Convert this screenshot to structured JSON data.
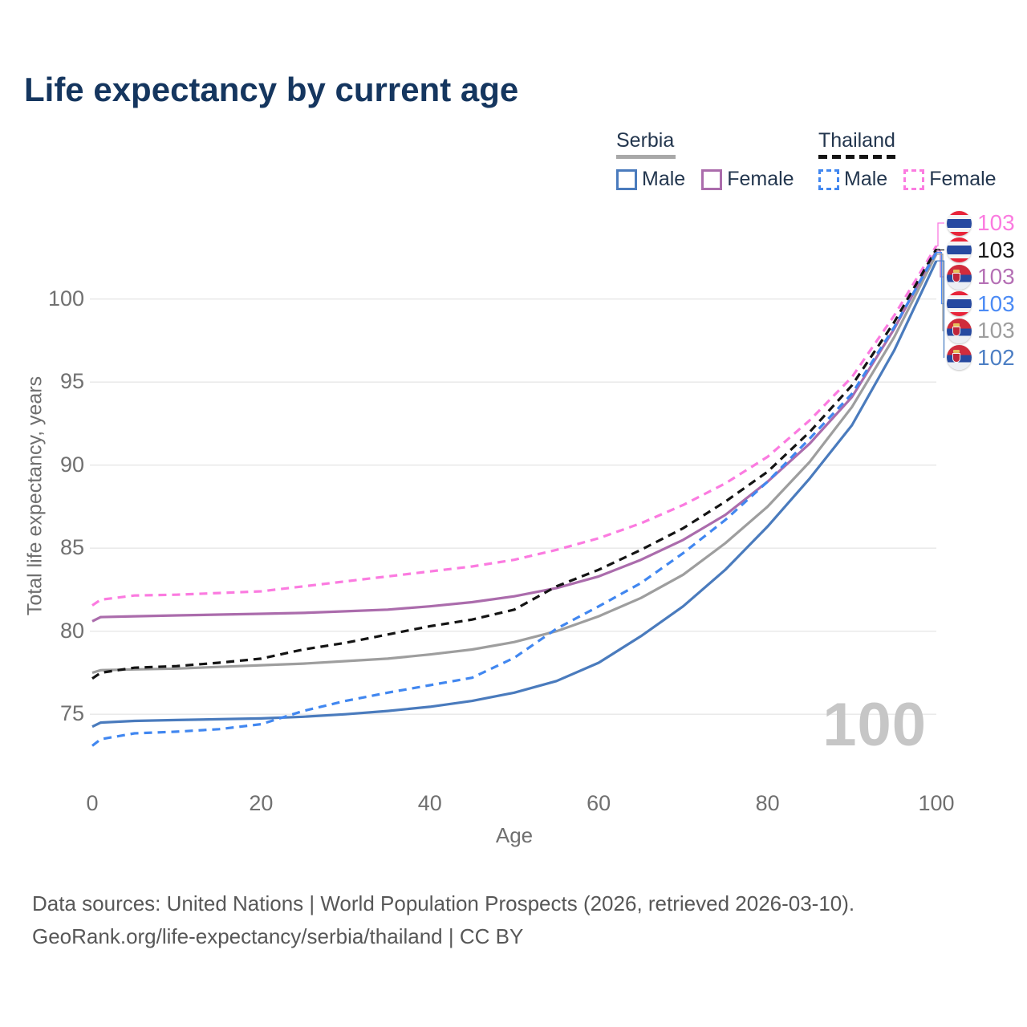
{
  "title": "Life expectancy by current age",
  "legend": {
    "groups": [
      {
        "label": "Serbia",
        "line_style": "solid",
        "line_color": "#a8a8a8",
        "items": [
          {
            "label": "Male",
            "color": "#4a7bbd",
            "dashed": false
          },
          {
            "label": "Female",
            "color": "#ab6cac",
            "dashed": false
          }
        ]
      },
      {
        "label": "Thailand",
        "line_style": "dashed",
        "line_color": "#141414",
        "items": [
          {
            "label": "Male",
            "color": "#4187f0",
            "dashed": true
          },
          {
            "label": "Female",
            "color": "#fb7be0",
            "dashed": true
          }
        ]
      }
    ]
  },
  "chart_data": {
    "type": "line",
    "xlabel": "Age",
    "ylabel": "Total life expectancy, years",
    "xticks": [
      0,
      20,
      40,
      60,
      80,
      100
    ],
    "yticks": [
      75,
      80,
      85,
      90,
      95,
      100
    ],
    "xlim": [
      0,
      100
    ],
    "ylim": [
      73,
      103.5
    ],
    "grid": "horizontal",
    "ages": [
      0,
      1,
      5,
      10,
      15,
      20,
      25,
      30,
      35,
      40,
      45,
      50,
      55,
      60,
      65,
      70,
      75,
      80,
      85,
      90,
      95,
      100
    ],
    "series": [
      {
        "name": "Thailand Female",
        "country": "Thailand",
        "sex": "Female",
        "color": "#fb7be0",
        "dashed": true,
        "end_label": "103",
        "values": [
          81.55,
          81.9,
          82.15,
          82.2,
          82.3,
          82.4,
          82.7,
          83.0,
          83.3,
          83.6,
          83.9,
          84.3,
          84.9,
          85.6,
          86.5,
          87.6,
          88.9,
          90.5,
          92.7,
          95.3,
          99.0,
          103.2
        ]
      },
      {
        "name": "Thailand",
        "country": "Thailand",
        "sex": "Total",
        "color": "#141414",
        "dashed": true,
        "end_label": "103",
        "values": [
          77.15,
          77.5,
          77.8,
          77.9,
          78.1,
          78.35,
          78.9,
          79.3,
          79.8,
          80.3,
          80.7,
          81.3,
          82.7,
          83.7,
          84.9,
          86.2,
          87.8,
          89.6,
          92.0,
          94.8,
          98.6,
          103.0
        ]
      },
      {
        "name": "Serbia Female",
        "country": "Serbia",
        "sex": "Female",
        "color": "#ab6cac",
        "dashed": false,
        "end_label": "103",
        "values": [
          80.6,
          80.85,
          80.9,
          80.95,
          81.0,
          81.05,
          81.1,
          81.2,
          81.3,
          81.5,
          81.75,
          82.1,
          82.6,
          83.3,
          84.3,
          85.5,
          87.0,
          89.0,
          91.3,
          94.1,
          98.2,
          102.9
        ]
      },
      {
        "name": "Thailand Male",
        "country": "Thailand",
        "sex": "Male",
        "color": "#4187f0",
        "dashed": true,
        "end_label": "103",
        "values": [
          73.1,
          73.5,
          73.85,
          73.95,
          74.1,
          74.4,
          75.2,
          75.8,
          76.3,
          76.75,
          77.2,
          78.4,
          80.15,
          81.5,
          82.9,
          84.7,
          86.7,
          89.0,
          91.6,
          94.3,
          98.3,
          102.8
        ]
      },
      {
        "name": "Serbia",
        "country": "Serbia",
        "sex": "Total",
        "color": "#9e9e9e",
        "dashed": false,
        "end_label": "103",
        "values": [
          77.5,
          77.65,
          77.7,
          77.75,
          77.85,
          77.95,
          78.05,
          78.2,
          78.35,
          78.6,
          78.9,
          79.35,
          80.0,
          80.9,
          82.0,
          83.4,
          85.3,
          87.5,
          90.2,
          93.5,
          97.7,
          102.7
        ]
      },
      {
        "name": "Serbia Male",
        "country": "Serbia",
        "sex": "Male",
        "color": "#4a7bbd",
        "dashed": false,
        "end_label": "102",
        "values": [
          74.25,
          74.5,
          74.6,
          74.65,
          74.7,
          74.75,
          74.85,
          75.0,
          75.2,
          75.45,
          75.8,
          76.3,
          77.0,
          78.1,
          79.7,
          81.5,
          83.7,
          86.3,
          89.2,
          92.4,
          96.9,
          102.3
        ]
      }
    ]
  },
  "end_labels": [
    {
      "value": "103",
      "color": "#fb7be0",
      "flag": "thailand"
    },
    {
      "value": "103",
      "color": "#1a1a1a",
      "flag": "thailand"
    },
    {
      "value": "103",
      "color": "#b570b5",
      "flag": "serbia"
    },
    {
      "value": "103",
      "color": "#4c8bf5",
      "flag": "thailand"
    },
    {
      "value": "103",
      "color": "#9e9e9e",
      "flag": "serbia"
    },
    {
      "value": "102",
      "color": "#4d7fc4",
      "flag": "serbia"
    }
  ],
  "watermark": "100",
  "footer": {
    "line1": "Data sources: United Nations | World Population Prospects (2026, retrieved 2026-03-10).",
    "line2": "GeoRank.org/life-expectancy/serbia/thailand | CC BY"
  }
}
